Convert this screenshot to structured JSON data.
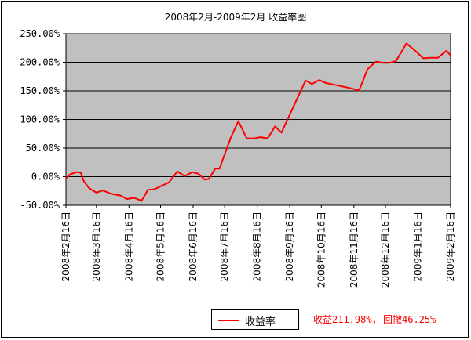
{
  "chart_data": {
    "type": "line",
    "title": "2008年2月-2009年2月 收益率图",
    "xlabel": "",
    "ylabel": "",
    "ylim": [
      -50,
      250
    ],
    "yticks": [
      250,
      200,
      150,
      100,
      50,
      0,
      -50
    ],
    "ytick_labels": [
      "250.00%",
      "200.00%",
      "150.00%",
      "100.00%",
      "50.00%",
      "0.00%",
      "-50.00%"
    ],
    "xticks": [
      "2008-02-16",
      "2008-03-16",
      "2008-04-16",
      "2008-05-16",
      "2008-06-16",
      "2008-07-16",
      "2008-08-16",
      "2008-09-16",
      "2008-10-16",
      "2008-11-16",
      "2008-12-16",
      "2009-01-16",
      "2009-02-16"
    ],
    "xtick_labels": [
      "2008年2月16日",
      "2008年3月16日",
      "2008年4月16日",
      "2008年5月16日",
      "2008年6月16日",
      "2008年7月16日",
      "2008年8月16日",
      "2008年9月16日",
      "2008年10月16日",
      "2008年11月16日",
      "2008年12月16日",
      "2009年1月16日",
      "2009年2月16日"
    ],
    "grid": true,
    "legend_position": "bottom-center",
    "series": [
      {
        "name": "收益率",
        "color": "#ff0000",
        "points": [
          [
            "2008-02-16",
            -3
          ],
          [
            "2008-02-20",
            4
          ],
          [
            "2008-02-26",
            8
          ],
          [
            "2008-03-01",
            7
          ],
          [
            "2008-03-04",
            -8
          ],
          [
            "2008-03-09",
            -20
          ],
          [
            "2008-03-16",
            -28
          ],
          [
            "2008-03-22",
            -24
          ],
          [
            "2008-03-30",
            -30
          ],
          [
            "2008-04-08",
            -33
          ],
          [
            "2008-04-14",
            -39
          ],
          [
            "2008-04-21",
            -37
          ],
          [
            "2008-04-28",
            -42
          ],
          [
            "2008-05-04",
            -23
          ],
          [
            "2008-05-10",
            -22
          ],
          [
            "2008-05-24",
            -10
          ],
          [
            "2008-06-01",
            9
          ],
          [
            "2008-06-08",
            1
          ],
          [
            "2008-06-15",
            8
          ],
          [
            "2008-06-21",
            5
          ],
          [
            "2008-06-27",
            -5
          ],
          [
            "2008-07-01",
            -4
          ],
          [
            "2008-07-07",
            14
          ],
          [
            "2008-07-11",
            14
          ],
          [
            "2008-07-22",
            69
          ],
          [
            "2008-07-29",
            97
          ],
          [
            "2008-08-06",
            67
          ],
          [
            "2008-08-13",
            67
          ],
          [
            "2008-08-19",
            69
          ],
          [
            "2008-08-26",
            67
          ],
          [
            "2008-09-02",
            88
          ],
          [
            "2008-09-08",
            77
          ],
          [
            "2008-10-01",
            168
          ],
          [
            "2008-10-07",
            162
          ],
          [
            "2008-10-14",
            169
          ],
          [
            "2008-10-20",
            164
          ],
          [
            "2008-11-12",
            155
          ],
          [
            "2008-11-21",
            151
          ],
          [
            "2008-11-29",
            188
          ],
          [
            "2008-12-07",
            201
          ],
          [
            "2008-12-14",
            199
          ],
          [
            "2008-12-20",
            199
          ],
          [
            "2008-12-26",
            202
          ],
          [
            "2009-01-05",
            233
          ],
          [
            "2009-01-14",
            219
          ],
          [
            "2009-01-21",
            207
          ],
          [
            "2009-01-28",
            208
          ],
          [
            "2009-02-04",
            208
          ],
          [
            "2009-02-12",
            220
          ],
          [
            "2009-02-16",
            212
          ]
        ]
      }
    ]
  },
  "legend": {
    "label": "收益率"
  },
  "stats": {
    "text": "收益211.98%, 回撤46.25%"
  }
}
